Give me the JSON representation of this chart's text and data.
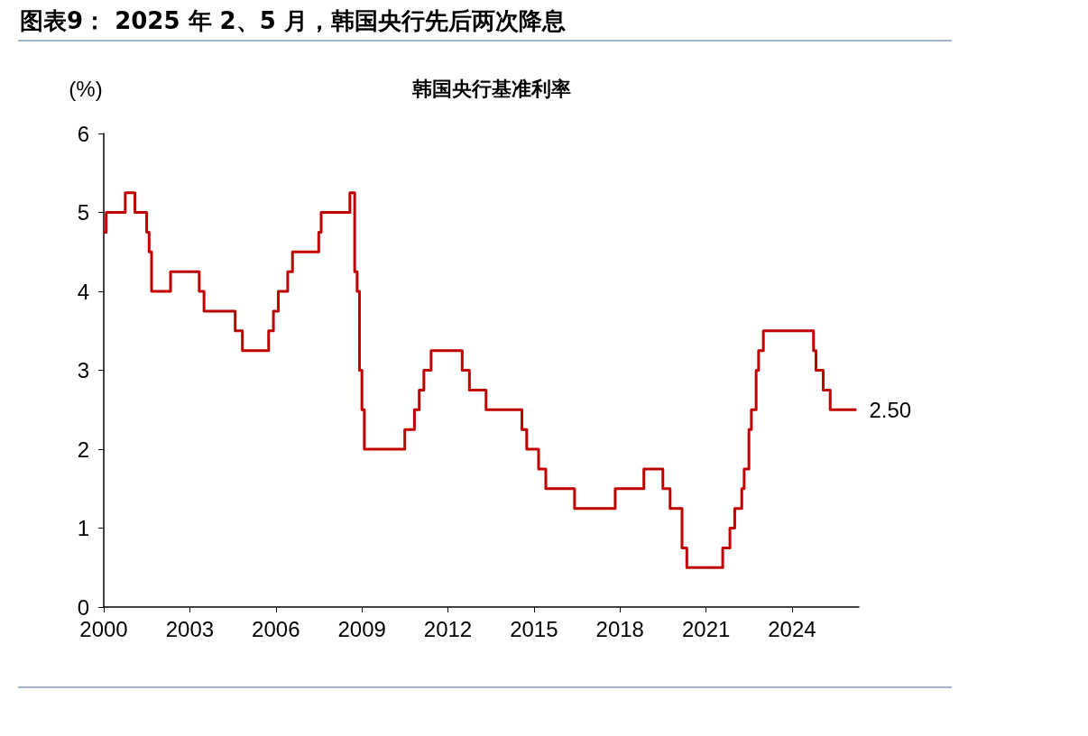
{
  "chart_data": {
    "type": "step",
    "title": "图表9： 2025 年 2、5 月，韩国央行先后两次降息",
    "subtitle": "韩国央行基准利率",
    "ylabel": "(%)",
    "x": [
      "2000-01",
      "2000-02",
      "2000-10",
      "2001-02",
      "2001-07",
      "2001-08",
      "2001-09",
      "2002-05",
      "2003-05",
      "2003-07",
      "2004-08",
      "2004-11",
      "2005-10",
      "2005-12",
      "2006-02",
      "2006-06",
      "2006-08",
      "2007-07",
      "2007-08",
      "2008-08",
      "2008-10",
      "2008-11",
      "2008-12",
      "2009-01",
      "2009-02",
      "2010-07",
      "2010-11",
      "2011-01",
      "2011-03",
      "2011-06",
      "2012-07",
      "2012-10",
      "2013-05",
      "2014-08",
      "2014-10",
      "2015-03",
      "2015-06",
      "2016-06",
      "2017-11",
      "2018-11",
      "2019-07",
      "2019-10",
      "2020-03",
      "2020-05",
      "2021-08",
      "2021-11",
      "2022-01",
      "2022-04",
      "2022-05",
      "2022-07",
      "2022-08",
      "2022-10",
      "2022-11",
      "2023-01",
      "2024-10",
      "2024-11",
      "2025-02",
      "2025-05",
      "2026-04"
    ],
    "series": [
      {
        "color": "#c00000",
        "values": [
          4.75,
          5.0,
          5.25,
          5.0,
          4.75,
          4.5,
          4.0,
          4.25,
          4.0,
          3.75,
          3.5,
          3.25,
          3.5,
          3.75,
          4.0,
          4.25,
          4.5,
          4.75,
          5.0,
          5.25,
          4.25,
          4.0,
          3.0,
          2.5,
          2.0,
          2.25,
          2.5,
          2.75,
          3.0,
          3.25,
          3.0,
          2.75,
          2.5,
          2.25,
          2.0,
          1.75,
          1.5,
          1.25,
          1.5,
          1.75,
          1.5,
          1.25,
          0.75,
          0.5,
          0.75,
          1.0,
          1.25,
          1.5,
          1.75,
          2.25,
          2.5,
          3.0,
          3.25,
          3.5,
          3.25,
          3.0,
          2.75,
          2.5,
          2.5
        ],
        "value_labels": [
          null,
          null,
          null,
          null,
          null,
          null,
          null,
          null,
          null,
          null,
          null,
          null,
          null,
          null,
          null,
          null,
          null,
          null,
          null,
          null,
          null,
          null,
          null,
          null,
          null,
          null,
          null,
          null,
          null,
          null,
          null,
          null,
          null,
          null,
          null,
          null,
          null,
          null,
          null,
          null,
          null,
          null,
          null,
          null,
          null,
          null,
          null,
          null,
          null,
          null,
          null,
          null,
          null,
          null,
          null,
          null,
          null,
          null,
          "2.50"
        ]
      }
    ],
    "xlim": [
      "2000-01",
      "2026-05"
    ],
    "xticks": [
      "2000",
      "2003",
      "2006",
      "2009",
      "2012",
      "2015",
      "2018",
      "2021",
      "2024"
    ],
    "ylim": [
      0,
      6
    ],
    "yticks": [
      0,
      1,
      2,
      3,
      4,
      5,
      6
    ],
    "grid": false,
    "marker": "none",
    "line_style": "solid"
  }
}
